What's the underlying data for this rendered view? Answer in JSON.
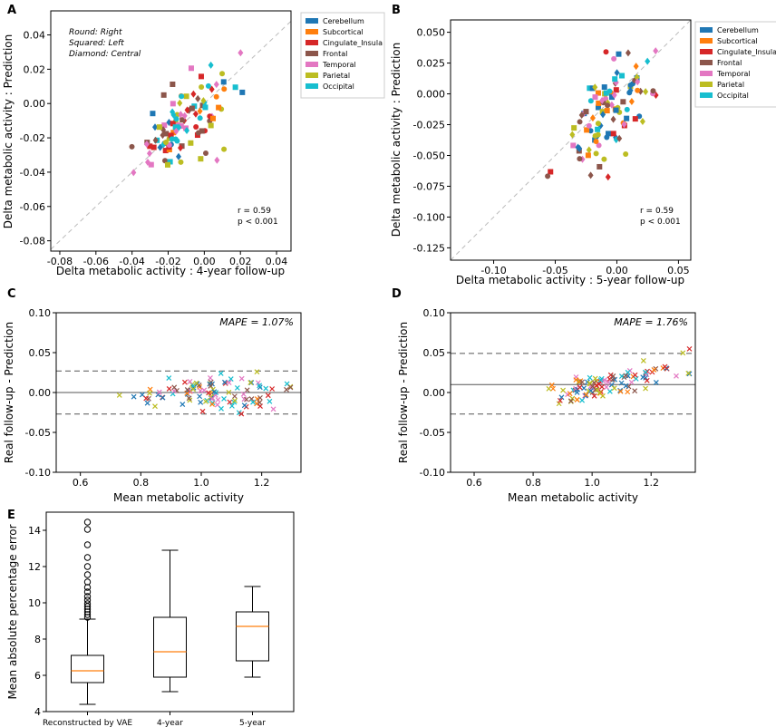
{
  "figure": {
    "panel_letters": [
      "A",
      "B",
      "C",
      "D",
      "E"
    ],
    "legend_items": [
      {
        "label": "Cerebellum",
        "color": "#1f77b4"
      },
      {
        "label": "Subcortical",
        "color": "#ff7f0e"
      },
      {
        "label": "Cingulate_Insula",
        "color": "#d62728"
      },
      {
        "label": "Frontal",
        "color": "#8c564b"
      },
      {
        "label": "Temporal",
        "color": "#e377c2"
      },
      {
        "label": "Parietal",
        "color": "#bcbd22"
      },
      {
        "label": "Occipital",
        "color": "#17becf"
      }
    ],
    "marker_notes": [
      "Round: Right",
      "Squared: Left",
      "Diamond: Central"
    ]
  },
  "chart_data": [
    {
      "id": "A",
      "type": "scatter",
      "xlabel": "Delta metabolic activity : 4-year follow-up",
      "ylabel": "Delta metabolic activity : Prediction",
      "xlim": [
        -0.085,
        0.048
      ],
      "ylim": [
        -0.086,
        0.054
      ],
      "xticks": [
        "-0.08",
        "-0.06",
        "-0.04",
        "-0.02",
        "0.00",
        "0.02",
        "0.04"
      ],
      "xtick_values": [
        -0.08,
        -0.06,
        -0.04,
        -0.02,
        0.0,
        0.02,
        0.04
      ],
      "yticks": [
        "-0.08",
        "-0.06",
        "-0.04",
        "-0.02",
        "0.00",
        "0.02",
        "0.04"
      ],
      "ytick_values": [
        -0.08,
        -0.06,
        -0.04,
        -0.02,
        0.0,
        0.02,
        0.04
      ],
      "identity_line": true,
      "stats": [
        "r = 0.59",
        "p < 0.001"
      ],
      "point_cloud": {
        "cx": -0.01,
        "cy": -0.012,
        "sx": 0.013,
        "sy": 0.014,
        "rho": 0.59,
        "n": 110,
        "seed": 11
      }
    },
    {
      "id": "B",
      "type": "scatter",
      "xlabel": "Delta metabolic activity : 5-year follow-up",
      "ylabel": "Delta metabolic activity : Prediction",
      "xlim": [
        -0.135,
        0.06
      ],
      "ylim": [
        -0.135,
        0.06
      ],
      "xticks": [
        "-0.10",
        "-0.05",
        "0.00",
        "0.05"
      ],
      "xtick_values": [
        -0.1,
        -0.05,
        0.0,
        0.05
      ],
      "yticks": [
        "-0.125",
        "-0.100",
        "-0.075",
        "-0.050",
        "-0.025",
        "0.000",
        "0.025",
        "0.050"
      ],
      "ytick_values": [
        -0.125,
        -0.1,
        -0.075,
        -0.05,
        -0.025,
        0.0,
        0.025,
        0.05
      ],
      "identity_line": true,
      "stats": [
        "r = 0.59",
        "p < 0.001"
      ],
      "point_cloud": {
        "cx": -0.008,
        "cy": -0.02,
        "sx": 0.018,
        "sy": 0.022,
        "rho": 0.59,
        "n": 110,
        "seed": 23
      }
    },
    {
      "id": "C",
      "type": "scatter",
      "xlabel": "Mean metabolic activity",
      "ylabel": "Real follow-up - Prediction",
      "xlim": [
        0.52,
        1.33
      ],
      "ylim": [
        -0.1,
        0.1
      ],
      "xticks": [
        "0.6",
        "0.8",
        "1.0",
        "1.2"
      ],
      "xtick_values": [
        0.6,
        0.8,
        1.0,
        1.2
      ],
      "yticks": [
        "-0.10",
        "-0.05",
        "0.00",
        "0.05",
        "0.10"
      ],
      "ytick_values": [
        -0.1,
        -0.05,
        0.0,
        0.05,
        0.1
      ],
      "mean_line": 0.0,
      "limits": [
        0.027,
        -0.027
      ],
      "mape": "MAPE = 1.07%",
      "point_cloud": {
        "cx": 1.05,
        "cy": 0.0,
        "sx": 0.11,
        "sy": 0.011,
        "slope": 0.0,
        "n": 110,
        "seed": 5
      }
    },
    {
      "id": "D",
      "type": "scatter",
      "xlabel": "Mean metabolic activity",
      "ylabel": "Real follow-up - Prediction",
      "xlim": [
        0.52,
        1.35
      ],
      "ylim": [
        -0.1,
        0.1
      ],
      "xticks": [
        "0.6",
        "0.8",
        "1.0",
        "1.2"
      ],
      "xtick_values": [
        0.6,
        0.8,
        1.0,
        1.2
      ],
      "yticks": [
        "-0.10",
        "-0.05",
        "0.00",
        "0.05",
        "0.10"
      ],
      "ytick_values": [
        -0.1,
        -0.05,
        0.0,
        0.05,
        0.1
      ],
      "mean_line": 0.01,
      "limits": [
        0.049,
        -0.027
      ],
      "mape": "MAPE = 1.76%",
      "point_cloud": {
        "cx": 1.05,
        "cy": 0.01,
        "sx": 0.11,
        "sy": 0.009,
        "slope": 0.09,
        "n": 110,
        "seed": 9
      }
    },
    {
      "id": "E",
      "type": "box",
      "ylabel": "Mean absolute percentage error",
      "ylim": [
        4.0,
        15.0
      ],
      "yticks": [
        "4",
        "6",
        "8",
        "10",
        "12",
        "14"
      ],
      "ytick_values": [
        4,
        6,
        8,
        10,
        12,
        14
      ],
      "categories": [
        "Reconstructed by VAE",
        "4-year",
        "5-year"
      ],
      "boxes": [
        {
          "whisker_low": 4.4,
          "q1": 5.6,
          "median": 6.25,
          "q3": 7.1,
          "whisker_high": 9.1,
          "outliers": [
            9.2,
            9.35,
            9.5,
            9.65,
            9.8,
            9.95,
            10.15,
            10.35,
            10.6,
            10.85,
            11.15,
            11.55,
            12.0,
            12.5,
            13.2,
            14.05,
            14.45
          ]
        },
        {
          "whisker_low": 5.1,
          "q1": 5.9,
          "median": 7.3,
          "q3": 9.2,
          "whisker_high": 12.9,
          "outliers": []
        },
        {
          "whisker_low": 5.9,
          "q1": 6.8,
          "median": 8.7,
          "q3": 9.5,
          "whisker_high": 10.9,
          "outliers": []
        }
      ]
    }
  ]
}
